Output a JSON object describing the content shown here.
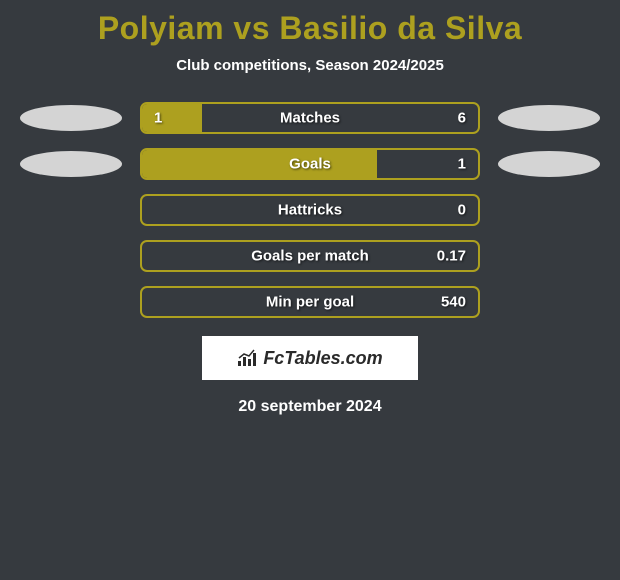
{
  "title": "Polyiam vs Basilio da Silva",
  "subtitle": "Club competitions, Season 2024/2025",
  "colors": {
    "background": "#363a3f",
    "accent": "#ada01f",
    "text": "#ffffff",
    "badge": "#d4d4d4",
    "logo_bg": "#ffffff",
    "logo_text": "#2a2a2a"
  },
  "typography": {
    "title_fontsize": 32,
    "subtitle_fontsize": 15,
    "bar_label_fontsize": 15,
    "date_fontsize": 16
  },
  "bars": [
    {
      "label": "Matches",
      "left_value": "1",
      "right_value": "6",
      "fill_percent": 18,
      "show_badges": true
    },
    {
      "label": "Goals",
      "left_value": "",
      "right_value": "1",
      "fill_percent": 70,
      "show_badges": true
    },
    {
      "label": "Hattricks",
      "left_value": "",
      "right_value": "0",
      "fill_percent": 0,
      "show_badges": false
    },
    {
      "label": "Goals per match",
      "left_value": "",
      "right_value": "0.17",
      "fill_percent": 0,
      "show_badges": false
    },
    {
      "label": "Min per goal",
      "left_value": "",
      "right_value": "540",
      "fill_percent": 0,
      "show_badges": false
    }
  ],
  "logo_text": "FcTables.com",
  "date": "20 september 2024"
}
